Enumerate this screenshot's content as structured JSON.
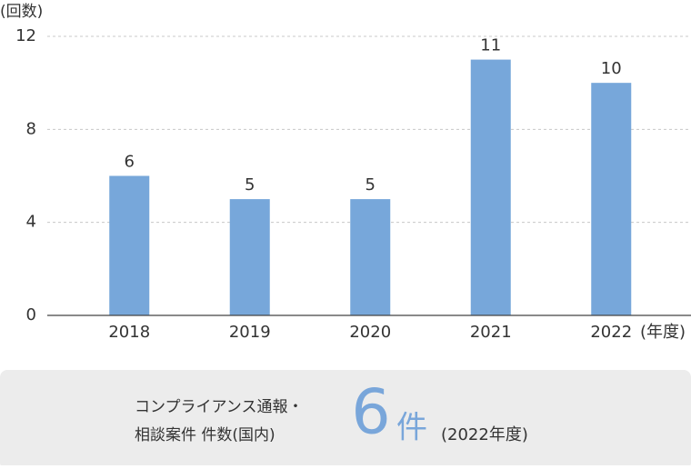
{
  "chart_data": {
    "type": "bar",
    "ylabel": "(回数)",
    "xlabel": "(年度)",
    "categories": [
      "2018",
      "2019",
      "2020",
      "2021",
      "2022"
    ],
    "values": [
      6,
      5,
      5,
      11,
      10
    ],
    "color": "#77a7da",
    "ylim": [
      0,
      12
    ],
    "yticks": [
      0,
      4,
      8,
      12
    ],
    "grid": true
  },
  "summary": {
    "label_lines": [
      "コンプライアンス通報・",
      "相談案件 件数(国内)"
    ],
    "count": 6,
    "unit": "件",
    "period": "(2022年度)"
  }
}
